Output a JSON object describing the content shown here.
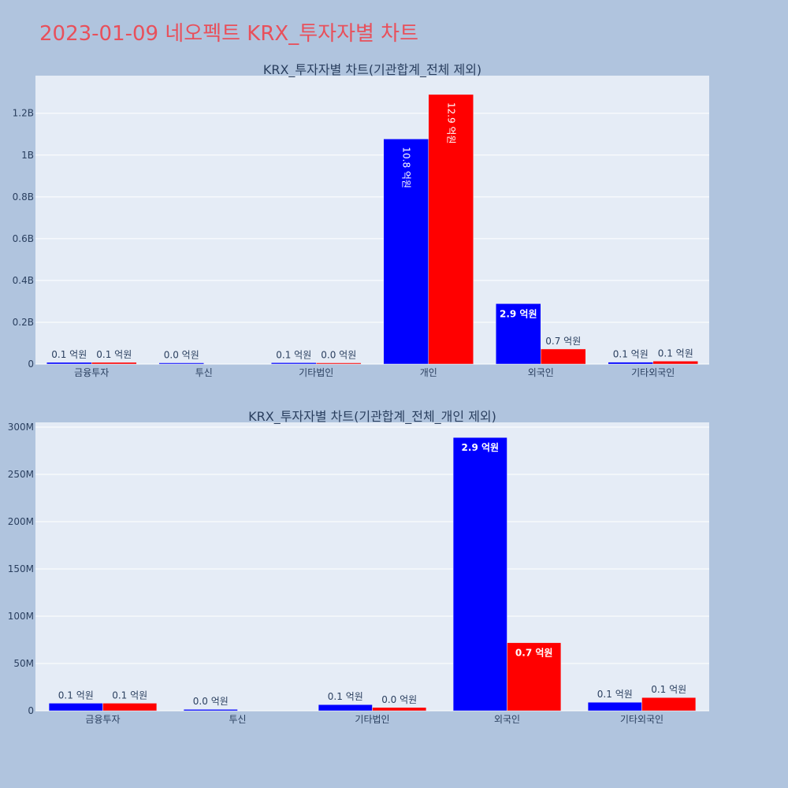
{
  "title": "2023-01-09 네오펙트 KRX_투자자별 차트",
  "colors": {
    "page_bg": "#b0c4de",
    "plot_bg": "#e5ecf6",
    "grid": "#ffffff",
    "buy": "#0000ff",
    "sell": "#ff0000",
    "text": "#2a3f5f"
  },
  "chart_data": [
    {
      "type": "bar",
      "title": "KRX_투자자별 차트(기관합계_전체 제외)",
      "categories": [
        "금융투자",
        "투신",
        "기타법인",
        "개인",
        "외국인",
        "기타외국인"
      ],
      "series": [
        {
          "values": [
            8000000,
            1500000,
            6500000,
            1077000000,
            289000000,
            9000000
          ],
          "labels": [
            "0.1 억원",
            "0.0 억원",
            "0.1 억원",
            "10.8 억원",
            "2.9 억원",
            "0.1 억원"
          ]
        },
        {
          "values": [
            8000000,
            0,
            3500000,
            1290000000,
            72000000,
            14000000
          ],
          "labels": [
            "0.1 억원",
            "",
            "0.0 억원",
            "12.9 억원",
            "0.7 억원",
            "0.1 억원"
          ]
        }
      ],
      "ylim": [
        0,
        1380000000
      ],
      "yticks": [
        0,
        200000000,
        400000000,
        600000000,
        800000000,
        1000000000,
        1200000000
      ],
      "ytick_labels": [
        "0",
        "0.2B",
        "0.4B",
        "0.6B",
        "0.8B",
        "1B",
        "1.2B"
      ],
      "grid": true,
      "legend": "none"
    },
    {
      "type": "bar",
      "title": "KRX_투자자별 차트(기관합계_전체_개인 제외)",
      "categories": [
        "금융투자",
        "투신",
        "기타법인",
        "외국인",
        "기타외국인"
      ],
      "series": [
        {
          "values": [
            8000000,
            1500000,
            6500000,
            289000000,
            9000000
          ],
          "labels": [
            "0.1 억원",
            "0.0 억원",
            "0.1 억원",
            "2.9 억원",
            "0.1 억원"
          ]
        },
        {
          "values": [
            8000000,
            0,
            3500000,
            72000000,
            14000000
          ],
          "labels": [
            "0.1 억원",
            "",
            "0.0 억원",
            "0.7 억원",
            "0.1 억원"
          ]
        }
      ],
      "ylim": [
        0,
        305000000
      ],
      "yticks": [
        0,
        50000000,
        100000000,
        150000000,
        200000000,
        250000000,
        300000000
      ],
      "ytick_labels": [
        "0",
        "50M",
        "100M",
        "150M",
        "200M",
        "250M",
        "300M"
      ],
      "grid": true,
      "legend": "none"
    }
  ]
}
